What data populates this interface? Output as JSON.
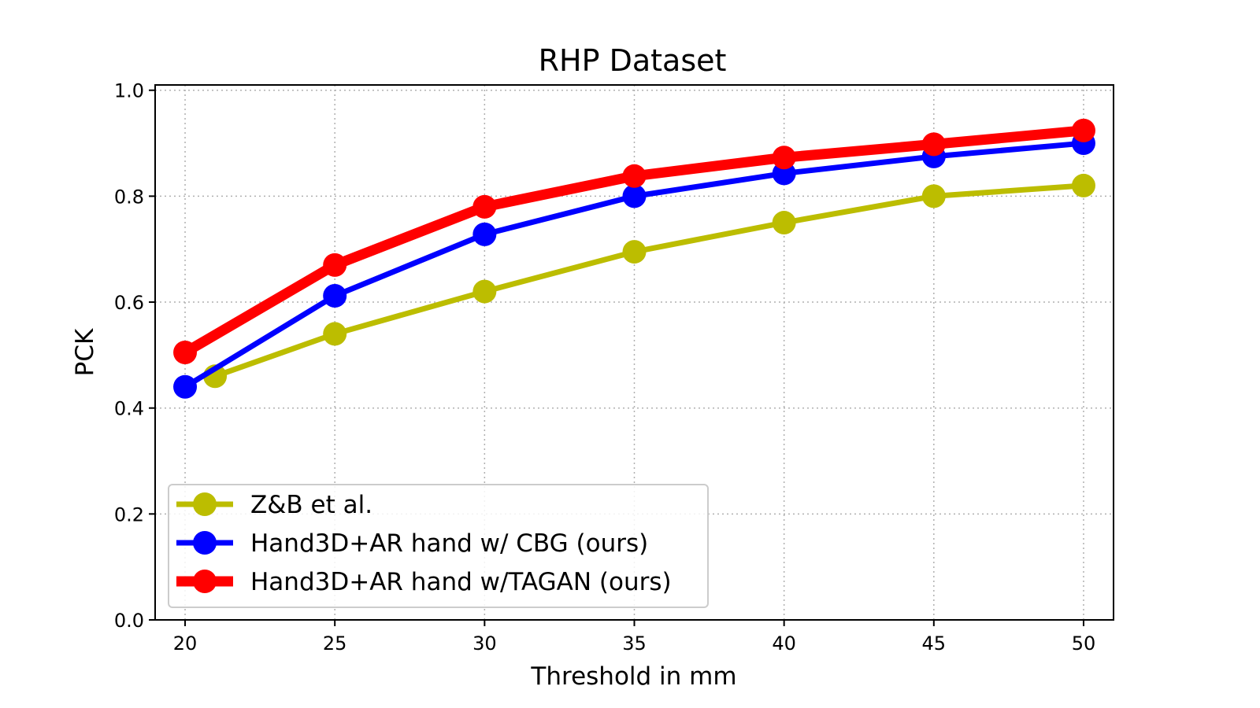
{
  "chart_data": {
    "type": "line",
    "title": "RHP Dataset",
    "xlabel": "Threshold in mm",
    "ylabel": "PCK",
    "xlim": [
      19,
      51
    ],
    "ylim": [
      0.0,
      1.01
    ],
    "xticks": [
      20,
      25,
      30,
      35,
      40,
      45,
      50
    ],
    "xtick_labels": [
      "20",
      "25",
      "30",
      "35",
      "40",
      "45",
      "50"
    ],
    "yticks": [
      0.0,
      0.2,
      0.4,
      0.6,
      0.8,
      1.0
    ],
    "ytick_labels": [
      "0.0",
      "0.2",
      "0.4",
      "0.6",
      "0.8",
      "1.0"
    ],
    "grid": true,
    "legend_position": "lower-left",
    "series": [
      {
        "name": "Z&B et al.",
        "color": "#bcbd00",
        "x": [
          21,
          25,
          30,
          35,
          40,
          45,
          50
        ],
        "values": [
          0.46,
          0.54,
          0.62,
          0.695,
          0.75,
          0.8,
          0.82
        ]
      },
      {
        "name": "Hand3D+AR hand w/ CBG (ours)",
        "color": "#0000ff",
        "x": [
          20,
          25,
          30,
          35,
          40,
          45,
          50
        ],
        "values": [
          0.44,
          0.612,
          0.728,
          0.8,
          0.843,
          0.875,
          0.9
        ]
      },
      {
        "name": "Hand3D+AR hand w/TAGAN (ours)",
        "color": "#ff0000",
        "x": [
          20,
          25,
          30,
          35,
          40,
          45,
          50
        ],
        "values": [
          0.505,
          0.67,
          0.78,
          0.838,
          0.873,
          0.898,
          0.924
        ]
      }
    ]
  }
}
